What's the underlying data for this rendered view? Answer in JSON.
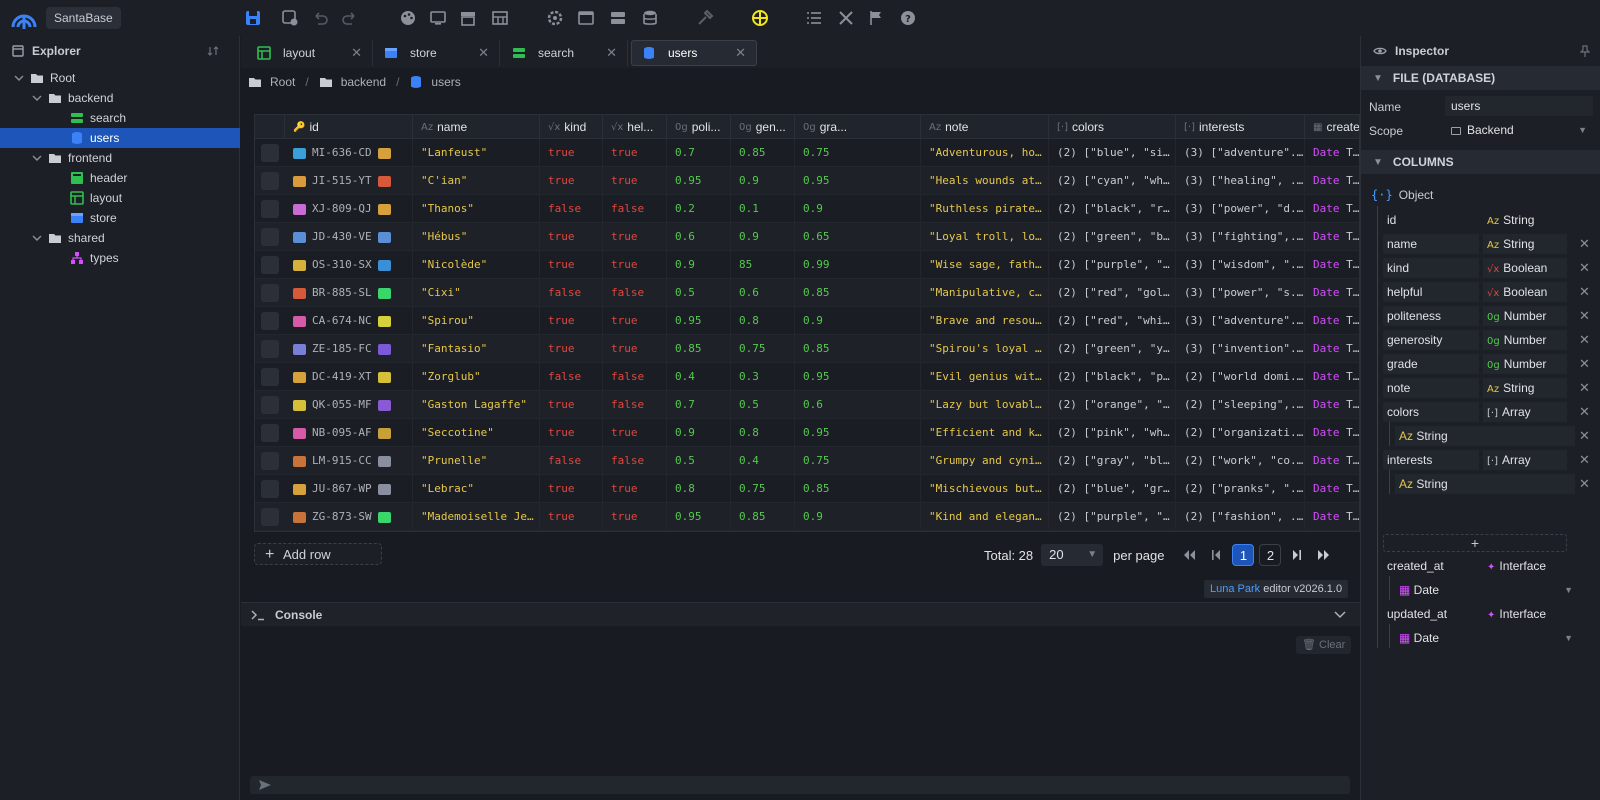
{
  "app": {
    "name": "SantaBase"
  },
  "toolbar": {
    "icons": [
      "save-icon",
      "save-as-icon",
      "undo-icon",
      "redo-icon",
      "palette-icon",
      "monitor-icon",
      "archive-icon",
      "grid-icon",
      "settings-icon",
      "window-icon",
      "server-icon",
      "database-icon",
      "hammer-icon",
      "target-icon",
      "list-icon",
      "tools-icon",
      "flag-icon",
      "help-icon"
    ]
  },
  "explorer": {
    "title": "Explorer",
    "items": [
      {
        "label": "Root",
        "depth": 0,
        "kind": "folder",
        "expanded": true
      },
      {
        "label": "backend",
        "depth": 1,
        "kind": "folder",
        "expanded": true
      },
      {
        "label": "search",
        "depth": 2,
        "kind": "search"
      },
      {
        "label": "users",
        "depth": 2,
        "kind": "database",
        "selected": true
      },
      {
        "label": "frontend",
        "depth": 1,
        "kind": "folder",
        "expanded": true
      },
      {
        "label": "header",
        "depth": 2,
        "kind": "header"
      },
      {
        "label": "layout",
        "depth": 2,
        "kind": "layout"
      },
      {
        "label": "store",
        "depth": 2,
        "kind": "store"
      },
      {
        "label": "shared",
        "depth": 1,
        "kind": "folder",
        "expanded": true
      },
      {
        "label": "types",
        "depth": 2,
        "kind": "types"
      }
    ]
  },
  "tabs": [
    {
      "label": "layout",
      "kind": "layout",
      "active": false
    },
    {
      "label": "store",
      "kind": "store",
      "active": false
    },
    {
      "label": "search",
      "kind": "search",
      "active": false
    },
    {
      "label": "users",
      "kind": "database",
      "active": true
    }
  ],
  "breadcrumb": [
    "Root",
    "backend",
    "users"
  ],
  "grid": {
    "columns": [
      {
        "label": "id",
        "type_icon": "🔑"
      },
      {
        "label": "name",
        "type_icon": "Az"
      },
      {
        "label": "kind",
        "type_icon": "√x"
      },
      {
        "label": "hel...",
        "type_icon": "√x"
      },
      {
        "label": "poli...",
        "type_icon": "0g"
      },
      {
        "label": "gen...",
        "type_icon": "0g"
      },
      {
        "label": "gra...",
        "type_icon": "0g"
      },
      {
        "label": "note",
        "type_icon": "Az"
      },
      {
        "label": "colors",
        "type_icon": "[·]"
      },
      {
        "label": "interests",
        "type_icon": "[·]"
      },
      {
        "label": "created_at",
        "type_icon": "▦"
      }
    ],
    "rows": [
      {
        "id": "MI-636-CD",
        "name": "\"Lanfeust\"",
        "kind": "true",
        "helpful": "true",
        "politeness": "0.7",
        "generosity": "0.85",
        "grade": "0.75",
        "note": "\"Adventurous, ho...",
        "colors": "(2) [\"blue\", \"si...",
        "interests": "(3) [\"adventure\"...",
        "created_at": "Tue Nov 04 ..."
      },
      {
        "id": "JI-515-YT",
        "name": "\"C'ian\"",
        "kind": "true",
        "helpful": "true",
        "politeness": "0.95",
        "generosity": "0.9",
        "grade": "0.95",
        "note": "\"Heals wounds at...",
        "colors": "(2) [\"cyan\", \"wh...",
        "interests": "(3) [\"healing\", ...",
        "created_at": "Tue Nov 04 ..."
      },
      {
        "id": "XJ-809-QJ",
        "name": "\"Thanos\"",
        "kind": "false",
        "helpful": "false",
        "politeness": "0.2",
        "generosity": "0.1",
        "grade": "0.9",
        "note": "\"Ruthless pirate...",
        "colors": "(2) [\"black\", \"r...",
        "interests": "(3) [\"power\", \"d...",
        "created_at": "Tue Nov 04 ..."
      },
      {
        "id": "JD-430-VE",
        "name": "\"Hébus\"",
        "kind": "true",
        "helpful": "true",
        "politeness": "0.6",
        "generosity": "0.9",
        "grade": "0.65",
        "note": "\"Loyal troll, lo...",
        "colors": "(2) [\"green\", \"b...",
        "interests": "(3) [\"fighting\",...",
        "created_at": "Tue Nov 04 ..."
      },
      {
        "id": "OS-310-SX",
        "name": "\"Nicolède\"",
        "kind": "true",
        "helpful": "true",
        "politeness": "0.9",
        "generosity": "85",
        "grade": "0.99",
        "note": "\"Wise sage, fath...",
        "colors": "(2) [\"purple\", \"...",
        "interests": "(3) [\"wisdom\", \"...",
        "created_at": "Tue Nov 04 ..."
      },
      {
        "id": "BR-885-SL",
        "name": "\"Cixi\"",
        "kind": "false",
        "helpful": "false",
        "politeness": "0.5",
        "generosity": "0.6",
        "grade": "0.85",
        "note": "\"Manipulative, c...",
        "colors": "(2) [\"red\", \"gol...",
        "interests": "(3) [\"power\", \"s...",
        "created_at": "Tue Nov 04 ..."
      },
      {
        "id": "CA-674-NC",
        "name": "\"Spirou\"",
        "kind": "true",
        "helpful": "true",
        "politeness": "0.95",
        "generosity": "0.8",
        "grade": "0.9",
        "note": "\"Brave and resou...",
        "colors": "(2) [\"red\", \"whi...",
        "interests": "(3) [\"adventure\"...",
        "created_at": "Tue Nov 04 ..."
      },
      {
        "id": "ZE-185-FC",
        "name": "\"Fantasio\"",
        "kind": "true",
        "helpful": "true",
        "politeness": "0.85",
        "generosity": "0.75",
        "grade": "0.85",
        "note": "\"Spirou's loyal ...",
        "colors": "(2) [\"green\", \"y...",
        "interests": "(3) [\"invention\"...",
        "created_at": "Tue Nov 04 ..."
      },
      {
        "id": "DC-419-XT",
        "name": "\"Zorglub\"",
        "kind": "false",
        "helpful": "false",
        "politeness": "0.4",
        "generosity": "0.3",
        "grade": "0.95",
        "note": "\"Evil genius wit...",
        "colors": "(2) [\"black\", \"p...",
        "interests": "(2) [\"world domi...",
        "created_at": "Tue Nov 04 ..."
      },
      {
        "id": "QK-055-MF",
        "name": "\"Gaston Lagaffe\"",
        "kind": "true",
        "helpful": "false",
        "politeness": "0.7",
        "generosity": "0.5",
        "grade": "0.6",
        "note": "\"Lazy but lovabl...",
        "colors": "(2) [\"orange\", \"...",
        "interests": "(2) [\"sleeping\",...",
        "created_at": "Tue Nov 04 ..."
      },
      {
        "id": "NB-095-AF",
        "name": "\"Seccotine\"",
        "kind": "true",
        "helpful": "true",
        "politeness": "0.9",
        "generosity": "0.8",
        "grade": "0.95",
        "note": "\"Efficient and k...",
        "colors": "(2) [\"pink\", \"wh...",
        "interests": "(2) [\"organizati...",
        "created_at": "Tue Nov 04 ..."
      },
      {
        "id": "LM-915-CC",
        "name": "\"Prunelle\"",
        "kind": "false",
        "helpful": "false",
        "politeness": "0.5",
        "generosity": "0.4",
        "grade": "0.75",
        "note": "\"Grumpy and cyni...",
        "colors": "(2) [\"gray\", \"bl...",
        "interests": "(2) [\"work\", \"co...",
        "created_at": "Tue Nov 04 ..."
      },
      {
        "id": "JU-867-WP",
        "name": "\"Lebrac\"",
        "kind": "true",
        "helpful": "true",
        "politeness": "0.8",
        "generosity": "0.75",
        "grade": "0.85",
        "note": "\"Mischievous but...",
        "colors": "(2) [\"blue\", \"gr...",
        "interests": "(2) [\"pranks\", \"...",
        "created_at": "Tue Nov 04 ..."
      },
      {
        "id": "ZG-873-SW",
        "name": "\"Mademoiselle Je...",
        "kind": "true",
        "helpful": "true",
        "politeness": "0.95",
        "generosity": "0.85",
        "grade": "0.9",
        "note": "\"Kind and elegan...",
        "colors": "(2) [\"purple\", \"...",
        "interests": "(2) [\"fashion\", ...",
        "created_at": "Tue Nov 04 ..."
      }
    ],
    "date_keyword": "Date",
    "emoji_colors": [
      "#3aa0d8",
      "#d89a3a",
      "#c86bd6",
      "#5a8fd6",
      "#d6b23a",
      "#d65a3a",
      "#d65aa8",
      "#7a7fd6",
      "#d6a03a",
      "#d6c03a",
      "#d65aa8",
      "#c8733a",
      "#d6a03a",
      "#c8733a"
    ],
    "emoji_colors_2": [
      "#d6a03a",
      "#d65a3a",
      "#d6a03a",
      "#5a8fd6",
      "#3a8fd6",
      "#3ad66b",
      "#d6d03a",
      "#7a5ad6",
      "#d6c03a",
      "#8a5ad6",
      "#c8a03a",
      "#8a8fa0",
      "#8a8fa0",
      "#3ad66b"
    ]
  },
  "footer": {
    "add_row": "Add row",
    "total": "Total: 28",
    "page_size": "20",
    "per_page": "per page",
    "pages": [
      "1",
      "2"
    ]
  },
  "version": {
    "brand": "Luna Park",
    "text": " editor v2026.1.0"
  },
  "console": {
    "title": "Console",
    "clear": "Clear"
  },
  "inspector": {
    "title": "Inspector",
    "file_section": "FILE (DATABASE)",
    "name_label": "Name",
    "name_value": "users",
    "scope_label": "Scope",
    "scope_value": "Backend",
    "columns_section": "COLUMNS",
    "root_type": "Object",
    "columns": [
      {
        "name": "id",
        "type": "String",
        "tag": "str",
        "removable": false
      },
      {
        "name": "name",
        "type": "String",
        "tag": "str",
        "removable": true
      },
      {
        "name": "kind",
        "type": "Boolean",
        "tag": "bool",
        "removable": true
      },
      {
        "name": "helpful",
        "type": "Boolean",
        "tag": "bool",
        "removable": true
      },
      {
        "name": "politeness",
        "type": "Number",
        "tag": "num",
        "removable": true
      },
      {
        "name": "generosity",
        "type": "Number",
        "tag": "num",
        "removable": true
      },
      {
        "name": "grade",
        "type": "Number",
        "tag": "num",
        "removable": true
      },
      {
        "name": "note",
        "type": "String",
        "tag": "str",
        "removable": true
      },
      {
        "name": "colors",
        "type": "Array",
        "tag": "arr",
        "removable": true,
        "item": "String"
      },
      {
        "name": "interests",
        "type": "Array",
        "tag": "arr",
        "removable": true,
        "item": "String"
      }
    ],
    "interfaces": [
      {
        "name": "created_at",
        "type": "Interface",
        "item": "Date"
      },
      {
        "name": "updated_at",
        "type": "Interface",
        "item": "Date"
      }
    ]
  }
}
